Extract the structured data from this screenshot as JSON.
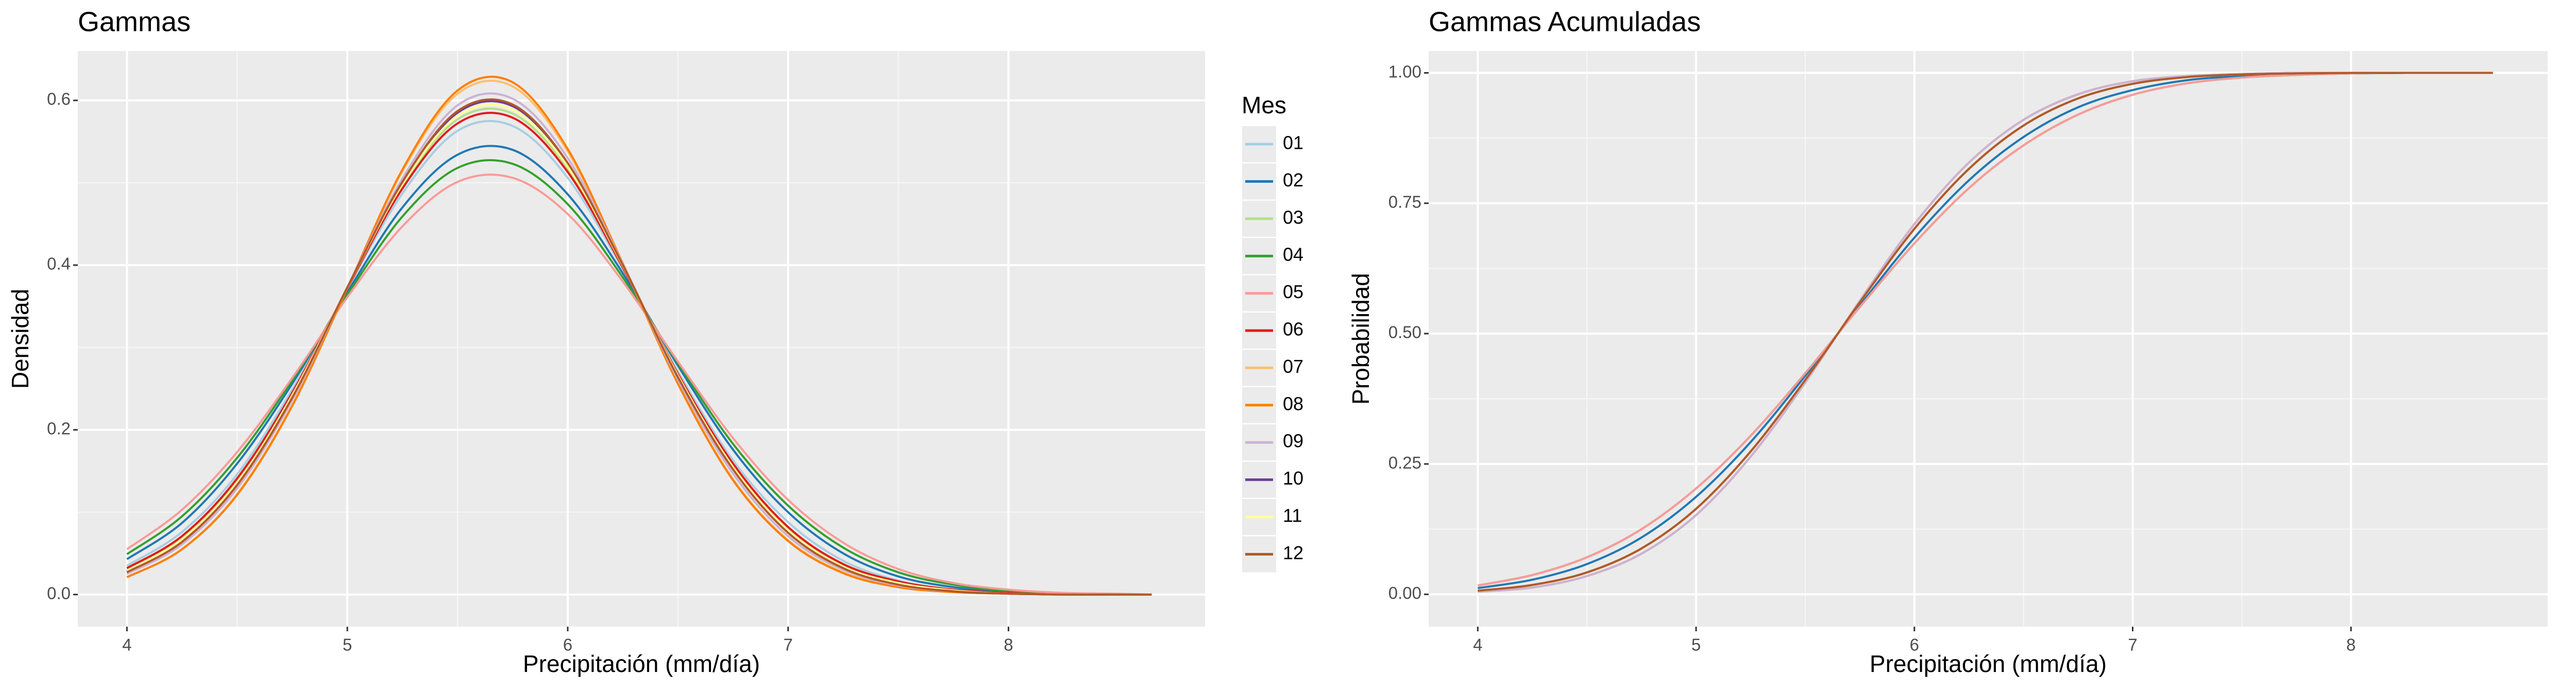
{
  "chart_data": [
    {
      "type": "line",
      "title": "Gammas",
      "x_label": "Precipitación (mm/día)",
      "y_label": "Densidad",
      "legend_title": "Mes",
      "xlim": [
        3.777,
        8.892
      ],
      "ylim": [
        -0.039,
        0.66
      ],
      "xticks": [
        4,
        5,
        6,
        7,
        8
      ],
      "yticks": [
        {
          "value": 0,
          "label": "0.0"
        },
        0.2,
        0.4,
        0.6
      ],
      "grid": true,
      "legend": "right",
      "x": [
        4,
        4.25,
        4.5,
        4.75,
        5,
        5.25,
        5.5,
        5.75,
        6,
        6.25,
        6.5,
        6.75,
        7,
        7.25,
        7.5,
        7.75,
        8,
        8.25,
        8.5,
        8.65
      ],
      "series": [
        {
          "name": "01",
          "color": "#a6cee3",
          "values": [
            0.035,
            0.076,
            0.146,
            0.249,
            0.371,
            0.487,
            0.563,
            0.569,
            0.506,
            0.395,
            0.271,
            0.163,
            0.088,
            0.041,
            0.017,
            0.006,
            0.002,
            0.001,
            0,
            0
          ]
        },
        {
          "name": "02",
          "color": "#1f78b4",
          "values": [
            0.043,
            0.087,
            0.159,
            0.256,
            0.367,
            0.47,
            0.534,
            0.54,
            0.486,
            0.39,
            0.278,
            0.176,
            0.1,
            0.05,
            0.022,
            0.009,
            0.003,
            0.001,
            0,
            0
          ]
        },
        {
          "name": "03",
          "color": "#b2df8a",
          "values": [
            0.03,
            0.069,
            0.138,
            0.243,
            0.372,
            0.496,
            0.577,
            0.584,
            0.517,
            0.398,
            0.267,
            0.157,
            0.08,
            0.036,
            0.015,
            0.005,
            0.002,
            0,
            0,
            0
          ]
        },
        {
          "name": "04",
          "color": "#33a02c",
          "values": [
            0.049,
            0.095,
            0.166,
            0.26,
            0.364,
            0.459,
            0.518,
            0.523,
            0.474,
            0.385,
            0.281,
            0.183,
            0.108,
            0.057,
            0.027,
            0.012,
            0.004,
            0.001,
            0,
            0
          ]
        },
        {
          "name": "05",
          "color": "#fb9a99",
          "values": [
            0.055,
            0.103,
            0.173,
            0.263,
            0.361,
            0.447,
            0.501,
            0.506,
            0.462,
            0.38,
            0.283,
            0.19,
            0.115,
            0.063,
            0.031,
            0.014,
            0.006,
            0.002,
            0.001,
            0
          ]
        },
        {
          "name": "06",
          "color": "#e31a1c",
          "values": [
            0.032,
            0.071,
            0.141,
            0.245,
            0.372,
            0.493,
            0.572,
            0.579,
            0.513,
            0.397,
            0.268,
            0.159,
            0.082,
            0.037,
            0.016,
            0.006,
            0.002,
            0,
            0,
            0
          ]
        },
        {
          "name": "07",
          "color": "#fdbf6f",
          "values": [
            0.021,
            0.055,
            0.122,
            0.23,
            0.372,
            0.514,
            0.608,
            0.617,
            0.538,
            0.401,
            0.257,
            0.14,
            0.066,
            0.027,
            0.009,
            0.003,
            0.001,
            0,
            0,
            0
          ]
        },
        {
          "name": "08",
          "color": "#ff7f00",
          "values": [
            0.021,
            0.055,
            0.121,
            0.229,
            0.372,
            0.516,
            0.612,
            0.622,
            0.541,
            0.402,
            0.256,
            0.139,
            0.065,
            0.026,
            0.009,
            0.003,
            0.001,
            0,
            0,
            0
          ]
        },
        {
          "name": "09",
          "color": "#cab2d6",
          "values": [
            0.025,
            0.061,
            0.129,
            0.236,
            0.373,
            0.505,
            0.594,
            0.602,
            0.53,
            0.401,
            0.261,
            0.147,
            0.071,
            0.03,
            0.011,
            0.004,
            0.001,
            0,
            0,
            0
          ]
        },
        {
          "name": "10",
          "color": "#6a3d9a",
          "values": [
            0.028,
            0.065,
            0.134,
            0.24,
            0.373,
            0.5,
            0.585,
            0.593,
            0.523,
            0.4,
            0.265,
            0.153,
            0.076,
            0.033,
            0.013,
            0.004,
            0.001,
            0,
            0,
            0
          ]
        },
        {
          "name": "11",
          "color": "#ffff99",
          "values": [
            0.029,
            0.067,
            0.136,
            0.242,
            0.373,
            0.498,
            0.581,
            0.589,
            0.52,
            0.399,
            0.266,
            0.155,
            0.078,
            0.034,
            0.014,
            0.005,
            0.001,
            0,
            0,
            0
          ]
        },
        {
          "name": "12",
          "color": "#b15928",
          "values": [
            0.027,
            0.064,
            0.133,
            0.239,
            0.373,
            0.501,
            0.587,
            0.595,
            0.524,
            0.4,
            0.264,
            0.152,
            0.075,
            0.032,
            0.012,
            0.004,
            0.001,
            0,
            0,
            0
          ]
        }
      ]
    },
    {
      "type": "line",
      "title": "Gammas Acumuladas",
      "x_label": "Precipitación (mm/día)",
      "y_label": "Probabilidad",
      "legend_title": "Mes",
      "xlim": [
        3.775,
        8.901
      ],
      "ylim": [
        -0.062,
        1.042
      ],
      "xticks": [
        4,
        5,
        6,
        7,
        8
      ],
      "yticks": [
        {
          "value": 0,
          "label": "0.00"
        },
        0.25,
        {
          "value": 0.5,
          "label": "0.50"
        },
        0.75,
        {
          "value": 1,
          "label": "1.00"
        }
      ],
      "grid": true,
      "legend": "right",
      "x": [
        4,
        4.25,
        4.5,
        4.75,
        5,
        5.25,
        5.5,
        5.75,
        6,
        6.25,
        6.5,
        6.75,
        7,
        7.25,
        7.5,
        7.75,
        8,
        8.25,
        8.5,
        8.65
      ],
      "series": [
        {
          "name": "01",
          "color": "#a6cee3",
          "values": [
            0.012,
            0.028,
            0.058,
            0.109,
            0.187,
            0.292,
            0.419,
            0.554,
            0.684,
            0.794,
            0.877,
            0.934,
            0.967,
            0.986,
            0.994,
            0.998,
            0.999,
            1,
            1,
            1
          ]
        },
        {
          "name": "02",
          "color": "#1f78b4",
          "values": [
            0.012,
            0.028,
            0.058,
            0.109,
            0.187,
            0.292,
            0.419,
            0.554,
            0.684,
            0.794,
            0.877,
            0.934,
            0.967,
            0.986,
            0.994,
            0.998,
            0.999,
            1,
            1,
            1
          ]
        },
        {
          "name": "03",
          "color": "#b2df8a",
          "values": [
            0.007,
            0.018,
            0.042,
            0.088,
            0.164,
            0.274,
            0.411,
            0.56,
            0.701,
            0.816,
            0.899,
            0.951,
            0.979,
            0.992,
            0.997,
            0.999,
            1,
            1,
            1,
            1
          ]
        },
        {
          "name": "04",
          "color": "#33a02c",
          "values": [
            0.017,
            0.037,
            0.071,
            0.125,
            0.203,
            0.304,
            0.424,
            0.551,
            0.673,
            0.779,
            0.861,
            0.92,
            0.958,
            0.98,
            0.991,
            0.996,
            0.999,
            1,
            1,
            1
          ]
        },
        {
          "name": "05",
          "color": "#fb9a99",
          "values": [
            0.017,
            0.037,
            0.071,
            0.125,
            0.203,
            0.304,
            0.424,
            0.551,
            0.673,
            0.779,
            0.861,
            0.92,
            0.958,
            0.98,
            0.991,
            0.996,
            0.999,
            1,
            1,
            1
          ]
        },
        {
          "name": "06",
          "color": "#e31a1c",
          "values": [
            0.007,
            0.018,
            0.042,
            0.088,
            0.164,
            0.274,
            0.411,
            0.56,
            0.701,
            0.816,
            0.899,
            0.951,
            0.979,
            0.992,
            0.997,
            0.999,
            1,
            1,
            1,
            1
          ]
        },
        {
          "name": "07",
          "color": "#fdbf6f",
          "values": [
            0.005,
            0.013,
            0.035,
            0.078,
            0.152,
            0.264,
            0.406,
            0.563,
            0.71,
            0.828,
            0.91,
            0.959,
            0.984,
            0.994,
            0.998,
            1,
            1,
            1,
            1,
            1
          ]
        },
        {
          "name": "08",
          "color": "#ff7f00",
          "values": [
            0.005,
            0.013,
            0.035,
            0.078,
            0.152,
            0.264,
            0.406,
            0.563,
            0.71,
            0.828,
            0.91,
            0.959,
            0.984,
            0.994,
            0.998,
            1,
            1,
            1,
            1,
            1
          ]
        },
        {
          "name": "09",
          "color": "#cab2d6",
          "values": [
            0.005,
            0.013,
            0.035,
            0.078,
            0.152,
            0.264,
            0.406,
            0.563,
            0.71,
            0.828,
            0.91,
            0.959,
            0.984,
            0.994,
            0.998,
            1,
            1,
            1,
            1,
            1
          ]
        },
        {
          "name": "10",
          "color": "#6a3d9a",
          "values": [
            0.007,
            0.018,
            0.042,
            0.088,
            0.164,
            0.274,
            0.411,
            0.56,
            0.701,
            0.816,
            0.899,
            0.951,
            0.979,
            0.992,
            0.997,
            0.999,
            1,
            1,
            1,
            1
          ]
        },
        {
          "name": "11",
          "color": "#ffff99",
          "values": [
            0.007,
            0.018,
            0.042,
            0.088,
            0.164,
            0.274,
            0.411,
            0.56,
            0.701,
            0.816,
            0.899,
            0.951,
            0.979,
            0.992,
            0.997,
            0.999,
            1,
            1,
            1,
            1
          ]
        },
        {
          "name": "12",
          "color": "#b15928",
          "values": [
            0.007,
            0.018,
            0.042,
            0.088,
            0.164,
            0.274,
            0.411,
            0.56,
            0.701,
            0.816,
            0.899,
            0.951,
            0.979,
            0.992,
            0.997,
            0.999,
            1,
            1,
            1,
            1
          ]
        }
      ]
    }
  ]
}
